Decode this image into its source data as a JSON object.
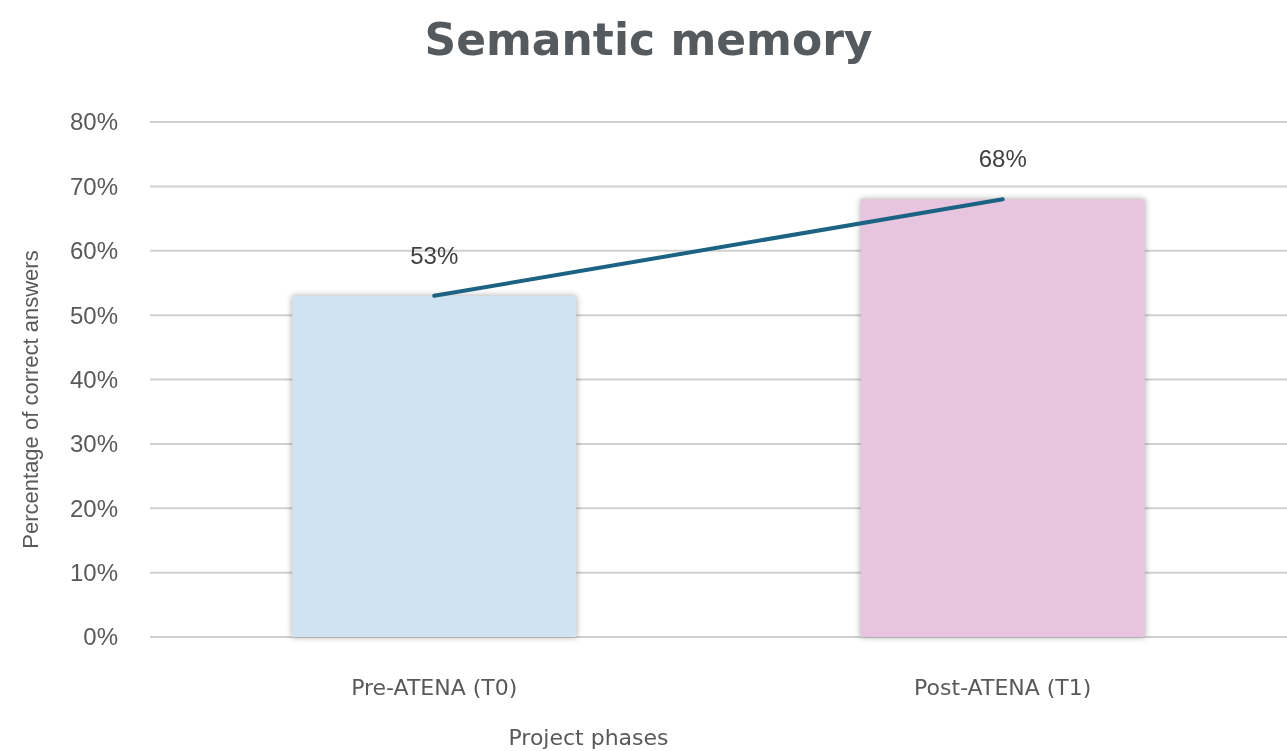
{
  "chart_data": {
    "type": "bar",
    "title": "Semantic memory",
    "xlabel": "Project phases",
    "ylabel": "Percentage of correct answers",
    "categories": [
      "Pre-ATENA (T0)",
      "Post-ATENA (T1)"
    ],
    "series": [
      {
        "colors": [
          "#cfe3f2",
          "#e8c5de"
        ],
        "values": [
          53,
          68
        ]
      },
      {
        "type": "line",
        "color": "#1c6383",
        "values": [
          53,
          68
        ],
        "value_labels": [
          "53%",
          "68%"
        ]
      }
    ],
    "ylim": [
      0,
      80
    ],
    "yticks": [
      {
        "value": 0,
        "label": "0%"
      },
      {
        "value": 10,
        "label": "10%"
      },
      {
        "value": 20,
        "label": "20%"
      },
      {
        "value": 30,
        "label": "30%"
      },
      {
        "value": 40,
        "label": "40%"
      },
      {
        "value": 50,
        "label": "50%"
      },
      {
        "value": 60,
        "label": "60%"
      },
      {
        "value": 70,
        "label": "70%"
      },
      {
        "value": 80,
        "label": "80%"
      }
    ],
    "grid": "y"
  }
}
